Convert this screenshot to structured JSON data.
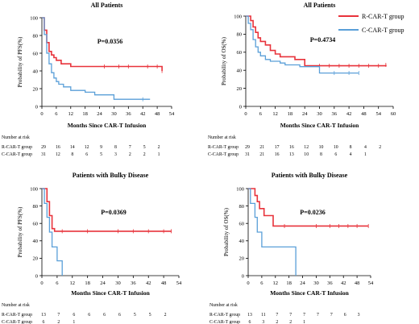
{
  "colors": {
    "r": "#e8333b",
    "c": "#5a9fd8",
    "axis": "#000000"
  },
  "legend": [
    {
      "name": "R-CAR-T group",
      "color": "#e8333b"
    },
    {
      "name": "C-CAR-T group",
      "color": "#5a9fd8"
    }
  ],
  "risk_header": "Number at risk",
  "chart_data": [
    {
      "type": "line",
      "title": "All Patients",
      "xlabel": "Months Since CAR-T Infusion",
      "ylabel": "Probability of PFS(%)",
      "pvalue": "P=0.0356",
      "xlim": [
        0,
        54
      ],
      "ylim": [
        0,
        100
      ],
      "xticks": [
        0,
        6,
        12,
        18,
        24,
        30,
        36,
        42,
        48,
        54
      ],
      "yticks": [
        0,
        20,
        40,
        60,
        80,
        100
      ],
      "series": [
        {
          "name": "R-CAR-T group",
          "x": [
            0,
            1,
            2,
            3,
            4,
            5,
            6,
            8,
            12,
            50
          ],
          "y": [
            100,
            86,
            72,
            62,
            58,
            55,
            52,
            48,
            45,
            40
          ],
          "censor_x": [
            26,
            32,
            36,
            44,
            48,
            50
          ]
        },
        {
          "name": "C-CAR-T group",
          "x": [
            0,
            1,
            2,
            3,
            4,
            5,
            6,
            7,
            9,
            12,
            18,
            22,
            30,
            45
          ],
          "y": [
            100,
            81,
            60,
            48,
            38,
            32,
            28,
            25,
            22,
            18,
            16,
            13,
            8,
            8
          ],
          "censor_x": [
            42
          ]
        }
      ],
      "risk": {
        "times": [
          0,
          6,
          12,
          18,
          24,
          30,
          36,
          42,
          48
        ],
        "rows": [
          {
            "label": "R-CAR-T group",
            "values": [
              "29",
              "16",
              "14",
              "12",
              "9",
              "8",
              "7",
              "5",
              "2"
            ]
          },
          {
            "label": "C-CAR-T group",
            "values": [
              "31",
              "12",
              "8",
              "6",
              "5",
              "3",
              "2",
              "2",
              "1"
            ]
          }
        ]
      }
    },
    {
      "type": "line",
      "title": "All Patients",
      "xlabel": "Months Since CAR-T Infusion",
      "ylabel": "Probability of OS(%)",
      "pvalue": "P=0.4734",
      "xlim": [
        0,
        60
      ],
      "ylim": [
        0,
        100
      ],
      "xticks": [
        0,
        6,
        12,
        18,
        24,
        30,
        36,
        42,
        48,
        54,
        60
      ],
      "yticks": [
        0,
        20,
        40,
        60,
        80,
        100
      ],
      "series": [
        {
          "name": "R-CAR-T group",
          "x": [
            0,
            2,
            3,
            4,
            5,
            6,
            8,
            10,
            12,
            14,
            20,
            24,
            57
          ],
          "y": [
            100,
            95,
            88,
            82,
            76,
            72,
            68,
            62,
            58,
            55,
            52,
            45,
            46
          ],
          "censor_x": [
            30,
            34,
            38,
            42,
            46,
            50,
            54,
            57
          ]
        },
        {
          "name": "C-CAR-T group",
          "x": [
            0,
            1,
            2,
            3,
            4,
            5,
            6,
            8,
            10,
            14,
            16,
            22,
            30,
            46
          ],
          "y": [
            100,
            92,
            85,
            74,
            66,
            60,
            56,
            52,
            50,
            48,
            46,
            44,
            37,
            37
          ],
          "censor_x": [
            36,
            42,
            46
          ]
        }
      ],
      "risk": {
        "times": [
          0,
          6,
          12,
          18,
          24,
          30,
          36,
          42,
          48,
          54
        ],
        "rows": [
          {
            "label": "R-CAR-T group",
            "values": [
              "29",
              "21",
              "17",
              "16",
              "12",
              "10",
              "10",
              "8",
              "4",
              "2"
            ]
          },
          {
            "label": "C-CAR-T group",
            "values": [
              "31",
              "21",
              "16",
              "13",
              "10",
              "8",
              "6",
              "4",
              "1",
              ""
            ]
          }
        ]
      }
    },
    {
      "type": "line",
      "title": "Patients with Bulky Disease",
      "xlabel": "Months Since CAR-T Infusion",
      "ylabel": "Probability of PFS(%)",
      "pvalue": "P=0.0369",
      "xlim": [
        0,
        54
      ],
      "ylim": [
        0,
        100
      ],
      "xticks": [
        0,
        6,
        12,
        18,
        24,
        30,
        36,
        42,
        48,
        54
      ],
      "yticks": [
        0,
        20,
        40,
        60,
        80,
        100
      ],
      "series": [
        {
          "name": "R-CAR-T group",
          "x": [
            0,
            2,
            3,
            4,
            5,
            51
          ],
          "y": [
            100,
            85,
            69,
            54,
            51,
            51
          ],
          "censor_x": [
            8,
            18,
            30,
            36,
            42,
            48,
            51
          ]
        },
        {
          "name": "C-CAR-T group",
          "x": [
            0,
            1,
            2,
            3,
            4,
            6,
            8
          ],
          "y": [
            100,
            83,
            67,
            50,
            33,
            17,
            0
          ],
          "censor_x": []
        }
      ],
      "risk": {
        "times": [
          0,
          6,
          12,
          18,
          24,
          30,
          36,
          42,
          48
        ],
        "rows": [
          {
            "label": "R-CAR-T group",
            "values": [
              "13",
              "7",
              "6",
              "6",
              "6",
              "6",
              "5",
              "5",
              "2"
            ]
          },
          {
            "label": "C-CAR-T group",
            "values": [
              "6",
              "2",
              "1",
              "",
              "",
              "",
              "",
              "",
              ""
            ]
          }
        ]
      }
    },
    {
      "type": "line",
      "title": "Patients with Bulky Disease",
      "xlabel": "Months Since CAR-T Infusion",
      "ylabel": "Probability of OS(%)",
      "pvalue": "P=0.0236",
      "xlim": [
        0,
        54
      ],
      "ylim": [
        0,
        100
      ],
      "xticks": [
        0,
        6,
        12,
        18,
        24,
        30,
        36,
        42,
        48,
        54
      ],
      "yticks": [
        0,
        20,
        40,
        60,
        80,
        100
      ],
      "series": [
        {
          "name": "R-CAR-T group",
          "x": [
            0,
            3,
            4,
            5,
            7,
            11,
            53
          ],
          "y": [
            100,
            92,
            85,
            77,
            69,
            57,
            57
          ],
          "censor_x": [
            16,
            30,
            36,
            40,
            44,
            48,
            53
          ]
        },
        {
          "name": "C-CAR-T group",
          "x": [
            0,
            1,
            3,
            4,
            6,
            21
          ],
          "y": [
            100,
            83,
            67,
            50,
            33,
            0
          ],
          "censor_x": []
        }
      ],
      "risk": {
        "times": [
          0,
          6,
          12,
          18,
          24,
          30,
          36,
          42,
          48
        ],
        "rows": [
          {
            "label": "R-CAR-T group",
            "values": [
              "13",
              "11",
              "7",
              "7",
              "7",
              "7",
              "7",
              "6",
              "3"
            ]
          },
          {
            "label": "C-CAR-T group",
            "values": [
              "6",
              "3",
              "2",
              "2",
              "1",
              "",
              "",
              "",
              ""
            ]
          }
        ]
      }
    }
  ]
}
